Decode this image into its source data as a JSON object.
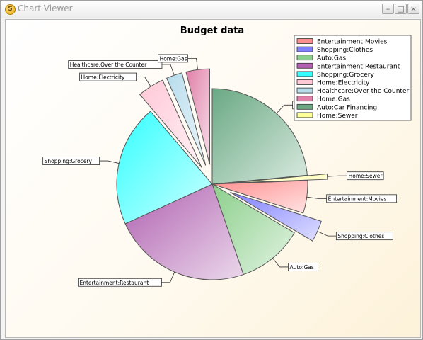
{
  "window": {
    "title": "Chart Viewer",
    "icon": "app-icon",
    "buttons": {
      "minimize": "minimize-icon",
      "maximize": "maximize-icon",
      "close": "close-icon"
    }
  },
  "chart_data": {
    "type": "pie",
    "title": "Budget data",
    "legend_position": "top-right",
    "start_angle_deg": 0,
    "series": [
      {
        "name": "Auto:Car Financing",
        "value": 23.5,
        "color": "#6aa984",
        "exploded": false
      },
      {
        "name": "Home:Sewer",
        "value": 0.9,
        "color": "#ffff99",
        "exploded": true
      },
      {
        "name": "Entertainment:Movies",
        "value": 5.5,
        "color": "#ff8f8f",
        "exploded": false
      },
      {
        "name": "Shopping:Clothes",
        "value": 3.6,
        "color": "#8080ff",
        "exploded": true
      },
      {
        "name": "Auto:Gas",
        "value": 11.2,
        "color": "#8ccf8c",
        "exploded": false
      },
      {
        "name": "Entertainment:Restaurant",
        "value": 23.5,
        "color": "#b061b0",
        "exploded": false
      },
      {
        "name": "Shopping:Grocery",
        "value": 20.6,
        "color": "#33ffff",
        "exploded": false
      },
      {
        "name": "Home:Electricity",
        "value": 4.5,
        "color": "#ffc8d7",
        "exploded": true
      },
      {
        "name": "Healthcare:Over the Counter",
        "value": 2.7,
        "color": "#b6dcec",
        "exploded": true
      },
      {
        "name": "Home:Gas",
        "value": 4.0,
        "color": "#e07fa8",
        "exploded": true
      }
    ],
    "legend_order": [
      "Entertainment:Movies",
      "Shopping:Clothes",
      "Auto:Gas",
      "Entertainment:Restaurant",
      "Shopping:Grocery",
      "Home:Electricity",
      "Healthcare:Over the Counter",
      "Home:Gas",
      "Auto:Car Financing",
      "Home:Sewer"
    ]
  }
}
